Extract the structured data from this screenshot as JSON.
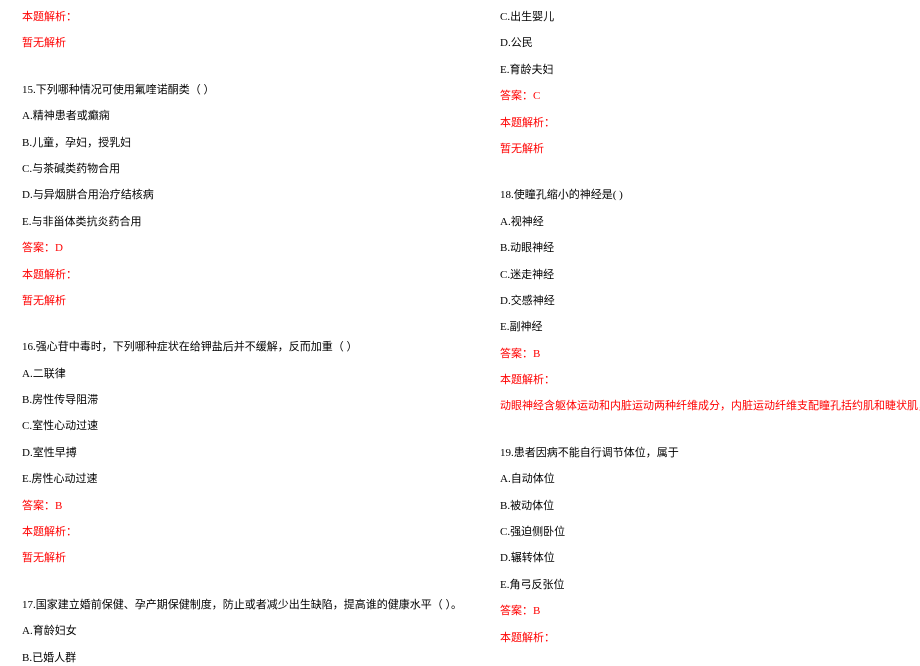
{
  "colors": {
    "text_black": "#000000",
    "text_red": "#ff0000",
    "background": "#ffffff"
  },
  "typography": {
    "font_family": "SimSun",
    "font_size_pt": 8,
    "line_height": 1.4
  },
  "labels": {
    "explain_header": "本题解析：",
    "no_explain": "暂无解析",
    "answer_prefix": "答案："
  },
  "left": {
    "pre": {
      "header": "本题解析：",
      "body": "暂无解析"
    },
    "q15": {
      "stem": "15.下列哪种情况可使用氟喹诺酮类（  ）",
      "opts": {
        "A": "A.精神患者或癫痫",
        "B": "B.儿童，孕妇，授乳妇",
        "C": "C.与茶碱类药物合用",
        "D": "D.与异烟肼合用治疗结核病",
        "E": "E.与非甾体类抗炎药合用"
      },
      "answer": "答案：D",
      "explain_header": "本题解析：",
      "explain_body": "暂无解析"
    },
    "q16": {
      "stem": "16.强心苷中毒时，下列哪种症状在给钾盐后并不缓解，反而加重（  ）",
      "opts": {
        "A": "A.二联律",
        "B": "B.房性传导阻滞",
        "C": "C.室性心动过速",
        "D": "D.室性早搏",
        "E": "E.房性心动过速"
      },
      "answer": "答案：B",
      "explain_header": "本题解析：",
      "explain_body": "暂无解析"
    },
    "q17": {
      "stem": "17.国家建立婚前保健、孕产期保健制度，防止或者减少出生缺陷，提高谁的健康水平（  ）。",
      "opts": {
        "A": "A.育龄妇女",
        "B": "B.已婚人群"
      }
    }
  },
  "right": {
    "q17cont": {
      "opts": {
        "C": "C.出生婴儿",
        "D": "D.公民",
        "E": "E.育龄夫妇"
      },
      "answer": "答案：C",
      "explain_header": "本题解析：",
      "explain_body": "暂无解析"
    },
    "q18": {
      "stem": "18.使瞳孔缩小的神经是( )",
      "opts": {
        "A": "A.视神经",
        "B": "B.动眼神经",
        "C": "C.迷走神经",
        "D": "D.交感神经",
        "E": "E.副神经"
      },
      "answer": "答案：B",
      "explain_header": "本题解析：",
      "explain_body": "动眼神经含躯体运动和内脏运动两种纤维成分，内脏运动纤维支配瞳孔括约肌和睫状肌，能使瞳孔缩小。"
    },
    "q19": {
      "stem": "19.患者因病不能自行调节体位，属于",
      "opts": {
        "A": "A.自动体位",
        "B": "B.被动体位",
        "C": "C.强迫侧卧位",
        "D": "D.辗转体位",
        "E": "E.角弓反张位"
      },
      "answer": "答案：B",
      "explain_header": "本题解析："
    }
  }
}
